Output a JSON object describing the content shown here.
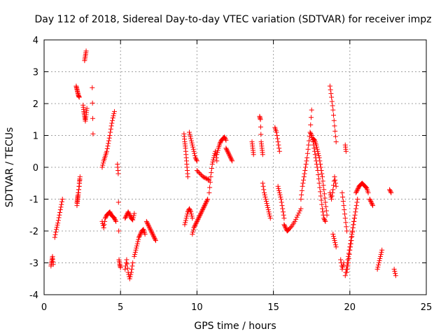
{
  "chart_data": {
    "type": "scatter",
    "title": "Day 112 of 2018, Sidereal Day-to-day VTEC variation (SDTVAR) for receiver impz",
    "xlabel": "GPS time / hours",
    "ylabel": "SDTVAR / TECUs",
    "xlim": [
      0,
      25
    ],
    "ylim": [
      -4,
      4
    ],
    "xticks": [
      0,
      5,
      10,
      15,
      20,
      25
    ],
    "yticks": [
      -4,
      -3,
      -2,
      -1,
      0,
      1,
      2,
      3,
      4
    ],
    "grid": true,
    "marker": "+",
    "color": "#ff0000",
    "segments": [
      {
        "x": [
          0.45,
          0.5,
          0.55,
          0.6
        ],
        "y": [
          -3.1,
          -2.95,
          -2.8,
          -3.05
        ]
      },
      {
        "x": [
          0.7,
          0.8,
          0.9,
          1.0,
          1.1,
          1.2
        ],
        "y": [
          -2.2,
          -1.95,
          -1.75,
          -1.5,
          -1.25,
          -1.0
        ]
      },
      {
        "x": [
          2.1,
          2.15,
          2.2,
          2.25,
          2.3
        ],
        "y": [
          2.55,
          2.45,
          2.35,
          2.25,
          2.2
        ]
      },
      {
        "x": [
          2.15,
          2.2,
          2.25,
          2.3,
          2.35,
          2.3,
          2.2,
          2.15
        ],
        "y": [
          -1.2,
          -1.0,
          -0.8,
          -0.5,
          -0.3,
          -0.6,
          -0.9,
          -1.1
        ]
      },
      {
        "x": [
          2.55,
          2.6,
          2.65,
          2.7,
          2.75,
          2.8
        ],
        "y": [
          1.95,
          1.75,
          1.6,
          1.45,
          1.65,
          1.85
        ]
      },
      {
        "x": [
          2.65,
          2.7,
          2.75
        ],
        "y": [
          3.35,
          3.5,
          3.65
        ]
      },
      {
        "x": [
          3.15,
          3.2
        ],
        "y": [
          2.5,
          1.05
        ]
      },
      {
        "x": [
          3.8,
          3.9,
          4.0,
          4.1,
          4.2,
          4.3,
          4.4,
          4.5,
          4.6
        ],
        "y": [
          0.0,
          0.2,
          0.35,
          0.5,
          0.75,
          1.0,
          1.3,
          1.55,
          1.75
        ]
      },
      {
        "x": [
          3.8,
          3.9,
          4.0,
          4.1,
          4.2,
          4.3,
          4.4,
          4.5,
          4.6,
          4.7
        ],
        "y": [
          -1.7,
          -1.9,
          -1.6,
          -1.5,
          -1.45,
          -1.4,
          -1.5,
          -1.55,
          -1.6,
          -1.7
        ]
      },
      {
        "x": [
          4.8,
          4.85,
          4.9,
          4.95,
          5.0
        ],
        "y": [
          0.1,
          -0.2,
          -2.9,
          -3.05,
          -3.15
        ]
      },
      {
        "x": [
          5.3,
          5.4,
          5.5,
          5.6,
          5.7,
          5.8,
          5.9
        ],
        "y": [
          -1.6,
          -1.5,
          -1.4,
          -1.5,
          -1.6,
          -1.65,
          -1.45
        ]
      },
      {
        "x": [
          5.3,
          5.4,
          5.5,
          5.6,
          5.7,
          5.8
        ],
        "y": [
          -3.2,
          -2.9,
          -3.3,
          -3.5,
          -3.3,
          -3.0
        ]
      },
      {
        "x": [
          5.9,
          6.0,
          6.1,
          6.2,
          6.3,
          6.4,
          6.5,
          6.6
        ],
        "y": [
          -2.8,
          -2.6,
          -2.4,
          -2.2,
          -2.1,
          -2.0,
          -1.95,
          -2.1
        ]
      },
      {
        "x": [
          6.7,
          6.8,
          6.9,
          7.0,
          7.1,
          7.2,
          7.3
        ],
        "y": [
          -1.7,
          -1.8,
          -1.9,
          -2.0,
          -2.1,
          -2.2,
          -2.3
        ]
      },
      {
        "x": [
          9.15,
          9.2,
          9.25,
          9.3,
          9.35,
          9.4
        ],
        "y": [
          1.05,
          0.8,
          0.6,
          0.3,
          0.0,
          -0.3
        ]
      },
      {
        "x": [
          9.2,
          9.3,
          9.4,
          9.5,
          9.6,
          9.7
        ],
        "y": [
          -1.8,
          -1.6,
          -1.4,
          -1.3,
          -1.4,
          -1.6
        ]
      },
      {
        "x": [
          9.5,
          9.6,
          9.7,
          9.8,
          9.9,
          10.0
        ],
        "y": [
          1.1,
          0.9,
          0.7,
          0.5,
          0.3,
          0.2
        ]
      },
      {
        "x": [
          9.7,
          9.8,
          9.9,
          10.0,
          10.1,
          10.2,
          10.3,
          10.4,
          10.5,
          10.6,
          10.7
        ],
        "y": [
          -2.1,
          -1.9,
          -1.8,
          -1.7,
          -1.6,
          -1.5,
          -1.4,
          -1.3,
          -1.2,
          -1.1,
          -1.0
        ]
      },
      {
        "x": [
          10.0,
          10.2,
          10.4,
          10.6,
          10.8
        ],
        "y": [
          -0.1,
          -0.2,
          -0.3,
          -0.35,
          -0.4
        ]
      },
      {
        "x": [
          10.8,
          10.9,
          11.0,
          11.1,
          11.2,
          11.3
        ],
        "y": [
          -0.8,
          -0.3,
          0.1,
          0.3,
          0.5,
          0.2
        ]
      },
      {
        "x": [
          11.3,
          11.4,
          11.5,
          11.6,
          11.7,
          11.8,
          11.9
        ],
        "y": [
          0.4,
          0.6,
          0.75,
          0.85,
          0.9,
          0.95,
          0.85
        ]
      },
      {
        "x": [
          11.9,
          12.0,
          12.1,
          12.2,
          12.3
        ],
        "y": [
          0.6,
          0.5,
          0.4,
          0.3,
          0.2
        ]
      },
      {
        "x": [
          13.6,
          13.65,
          13.7
        ],
        "y": [
          0.8,
          0.6,
          0.4
        ]
      },
      {
        "x": [
          14.1,
          14.15,
          14.2,
          14.25,
          14.3
        ],
        "y": [
          1.6,
          1.5,
          0.8,
          0.6,
          0.4
        ]
      },
      {
        "x": [
          14.3,
          14.4,
          14.5,
          14.6,
          14.7,
          14.8
        ],
        "y": [
          -0.5,
          -0.8,
          -1.0,
          -1.2,
          -1.4,
          -1.6
        ]
      },
      {
        "x": [
          15.1,
          15.2,
          15.3,
          15.4
        ],
        "y": [
          1.25,
          1.1,
          0.8,
          0.5
        ]
      },
      {
        "x": [
          15.3,
          15.4,
          15.5,
          15.6,
          15.7
        ],
        "y": [
          -0.6,
          -0.8,
          -1.0,
          -1.3,
          -1.6
        ]
      },
      {
        "x": [
          15.7,
          15.8,
          15.9,
          16.0,
          16.2,
          16.4,
          16.6,
          16.8
        ],
        "y": [
          -1.8,
          -1.9,
          -2.0,
          -1.95,
          -1.85,
          -1.7,
          -1.5,
          -1.3
        ]
      },
      {
        "x": [
          16.8,
          16.9,
          17.0,
          17.1,
          17.2,
          17.3,
          17.4,
          17.5
        ],
        "y": [
          -1.0,
          -0.6,
          -0.3,
          0.0,
          0.3,
          0.7,
          1.1,
          1.8
        ]
      },
      {
        "x": [
          17.4,
          17.5,
          17.6,
          17.7,
          17.8,
          17.9,
          18.0,
          18.1,
          18.2,
          18.3,
          18.4
        ],
        "y": [
          1.1,
          1.0,
          0.8,
          0.5,
          0.2,
          -0.1,
          -0.5,
          -0.9,
          -1.3,
          -1.6,
          -1.7
        ]
      },
      {
        "x": [
          17.6,
          17.7,
          17.8,
          17.9,
          18.0,
          18.1,
          18.2,
          18.3,
          18.4,
          18.5
        ],
        "y": [
          0.9,
          0.85,
          0.7,
          0.5,
          0.3,
          0.0,
          -0.3,
          -0.7,
          -1.1,
          -1.5
        ]
      },
      {
        "x": [
          18.7,
          18.8,
          18.9,
          19.0,
          19.1
        ],
        "y": [
          2.55,
          2.2,
          1.8,
          1.3,
          0.8
        ]
      },
      {
        "x": [
          18.7,
          18.8,
          18.9,
          19.0,
          19.1
        ],
        "y": [
          -0.8,
          -1.0,
          -0.7,
          -0.3,
          -0.6
        ]
      },
      {
        "x": [
          18.9,
          19.0,
          19.1
        ],
        "y": [
          -2.1,
          -2.3,
          -2.5
        ]
      },
      {
        "x": [
          19.4,
          19.5,
          19.6
        ],
        "y": [
          -2.9,
          -3.2,
          -3.0
        ]
      },
      {
        "x": [
          19.5,
          19.6,
          19.7,
          19.8
        ],
        "y": [
          -0.8,
          -1.2,
          -1.6,
          -2.0
        ]
      },
      {
        "x": [
          19.7,
          19.75
        ],
        "y": [
          0.7,
          0.5
        ]
      },
      {
        "x": [
          19.7,
          19.8,
          19.9,
          20.0,
          20.1,
          20.2,
          20.3,
          20.4,
          20.5
        ],
        "y": [
          -3.4,
          -3.1,
          -2.8,
          -2.5,
          -2.2,
          -1.9,
          -1.6,
          -1.3,
          -1.0
        ]
      },
      {
        "x": [
          19.8,
          19.9,
          20.0,
          20.1,
          20.2,
          20.3
        ],
        "y": [
          -3.3,
          -3.0,
          -2.6,
          -2.3,
          -1.9,
          -1.6
        ]
      },
      {
        "x": [
          20.4,
          20.5,
          20.6,
          20.7,
          20.8,
          20.9,
          21.0,
          21.1,
          21.2
        ],
        "y": [
          -0.8,
          -0.7,
          -0.6,
          -0.55,
          -0.5,
          -0.55,
          -0.6,
          -0.65,
          -0.8
        ]
      },
      {
        "x": [
          21.3,
          21.4,
          21.5
        ],
        "y": [
          -1.0,
          -1.1,
          -1.2
        ]
      },
      {
        "x": [
          21.8,
          21.9,
          22.0,
          22.1
        ],
        "y": [
          -3.2,
          -3.0,
          -2.8,
          -2.6
        ]
      },
      {
        "x": [
          22.6,
          22.7
        ],
        "y": [
          -0.7,
          -0.8
        ]
      },
      {
        "x": [
          22.9,
          23.0
        ],
        "y": [
          -3.2,
          -3.4
        ]
      }
    ]
  }
}
